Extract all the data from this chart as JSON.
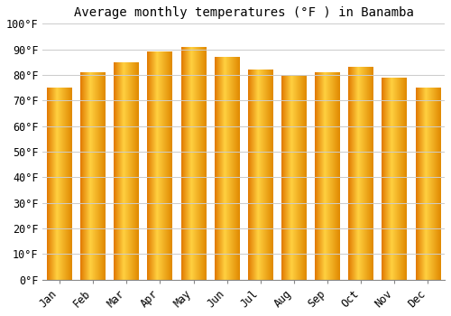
{
  "months": [
    "Jan",
    "Feb",
    "Mar",
    "Apr",
    "May",
    "Jun",
    "Jul",
    "Aug",
    "Sep",
    "Oct",
    "Nov",
    "Dec"
  ],
  "values": [
    75,
    81,
    85,
    89,
    91,
    87,
    82,
    80,
    81,
    83,
    79,
    75
  ],
  "bar_color_left": "#E07800",
  "bar_color_center": "#FFD040",
  "bar_color_right": "#E08800",
  "title": "Average monthly temperatures (°F ) in Banamba",
  "ylim": [
    0,
    100
  ],
  "yticks": [
    0,
    10,
    20,
    30,
    40,
    50,
    60,
    70,
    80,
    90,
    100
  ],
  "ytick_labels": [
    "0°F",
    "10°F",
    "20°F",
    "30°F",
    "40°F",
    "50°F",
    "60°F",
    "70°F",
    "80°F",
    "90°F",
    "100°F"
  ],
  "background_color": "#ffffff",
  "grid_color": "#cccccc",
  "title_fontsize": 10,
  "tick_fontsize": 8.5,
  "font_family": "monospace"
}
